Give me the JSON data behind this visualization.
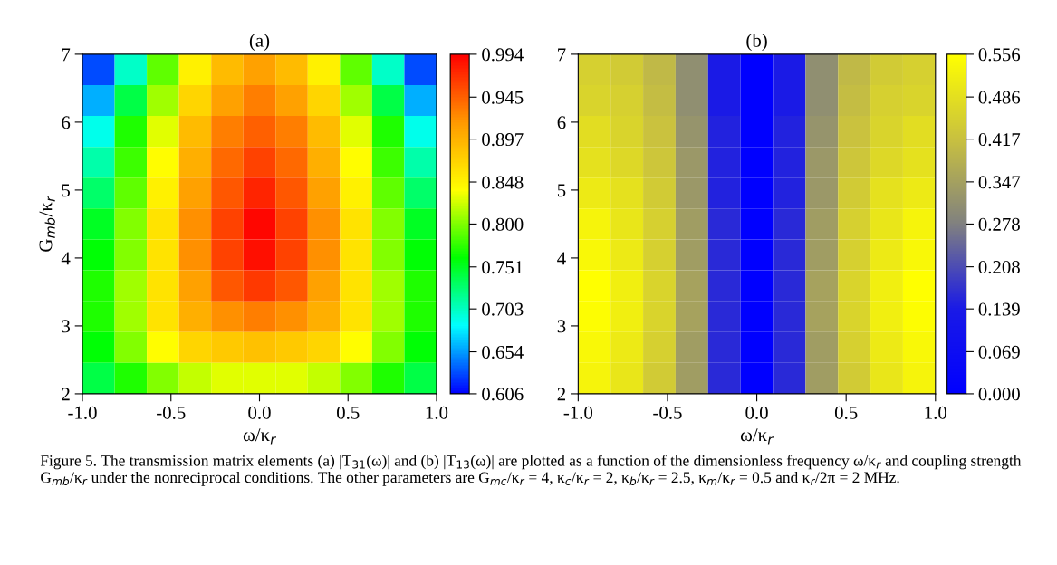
{
  "chart_data": [
    {
      "type": "heatmap",
      "title": "(a)",
      "xlabel": "ω/κ$_{r}$",
      "ylabel": "G$_{mb}$/κ$_{r}$",
      "xlim": [
        -1.0,
        1.0
      ],
      "xticks": [
        {
          "value": -1.0,
          "label": "-1.0"
        },
        {
          "value": -0.5,
          "label": "-0.5"
        },
        {
          "value": 0.0,
          "label": "0.0"
        },
        {
          "value": 0.5,
          "label": "0.5"
        },
        {
          "value": 1.0,
          "label": "1.0"
        }
      ],
      "ylim": [
        2,
        7
      ],
      "yticks": [
        2,
        3,
        4,
        5,
        6,
        7
      ],
      "colors": [
        "#0000ff",
        "#00ffff",
        "#00ff00",
        "#ffff00",
        "#ff9900",
        "#ff0000"
      ],
      "clim": [
        0.606,
        0.994
      ],
      "cticks": [
        {
          "value": 0.606,
          "label": "0.606"
        },
        {
          "value": 0.654,
          "label": "0.654"
        },
        {
          "value": 0.703,
          "label": "0.703"
        },
        {
          "value": 0.751,
          "label": "0.751"
        },
        {
          "value": 0.8,
          "label": "0.800"
        },
        {
          "value": 0.848,
          "label": "0.848"
        },
        {
          "value": 0.897,
          "label": "0.897"
        },
        {
          "value": 0.945,
          "label": "0.945"
        },
        {
          "value": 0.994,
          "label": "0.994"
        }
      ],
      "cells": [
        [
          0.63,
          0.7,
          0.79,
          0.85,
          0.89,
          0.91,
          0.89,
          0.85,
          0.79,
          0.7,
          0.63
        ],
        [
          0.66,
          0.74,
          0.81,
          0.87,
          0.91,
          0.93,
          0.91,
          0.87,
          0.81,
          0.74,
          0.66
        ],
        [
          0.69,
          0.77,
          0.83,
          0.89,
          0.93,
          0.945,
          0.93,
          0.89,
          0.83,
          0.77,
          0.69
        ],
        [
          0.71,
          0.78,
          0.84,
          0.9,
          0.94,
          0.96,
          0.94,
          0.9,
          0.84,
          0.78,
          0.71
        ],
        [
          0.73,
          0.79,
          0.85,
          0.91,
          0.95,
          0.975,
          0.95,
          0.91,
          0.85,
          0.79,
          0.73
        ],
        [
          0.75,
          0.8,
          0.86,
          0.92,
          0.96,
          0.99,
          0.96,
          0.92,
          0.86,
          0.8,
          0.75
        ],
        [
          0.76,
          0.8,
          0.86,
          0.92,
          0.96,
          0.985,
          0.96,
          0.92,
          0.86,
          0.8,
          0.76
        ],
        [
          0.77,
          0.81,
          0.86,
          0.91,
          0.95,
          0.965,
          0.95,
          0.91,
          0.86,
          0.81,
          0.77
        ],
        [
          0.77,
          0.81,
          0.86,
          0.9,
          0.92,
          0.93,
          0.92,
          0.9,
          0.86,
          0.81,
          0.77
        ],
        [
          0.76,
          0.8,
          0.84,
          0.87,
          0.88,
          0.885,
          0.88,
          0.87,
          0.84,
          0.8,
          0.76
        ],
        [
          0.74,
          0.77,
          0.8,
          0.82,
          0.83,
          0.83,
          0.83,
          0.82,
          0.8,
          0.77,
          0.74
        ]
      ],
      "annotations": [
        "Figure 5. The transmission matrix elements (a) |T$_{31}$(ω)| and (b) |T$_{13}$(ω)| are plotted as a function of the dimensionless frequency ω/κ$_{r}$ and coupling strength G$_{mb}$/κ$_{r}$ under the nonreciprocal conditions. The other parameters are G$_{mc}$/κ$_{r}$ = 4, κ$_{c}$/κ$_{r}$ = 2, κ$_{b}$/κ$_{r}$ = 2.5, κ$_{m}$/κ$_{r}$ = 0.5 and κ$_{r}$/2π = 2 MHz."
      ]
    },
    {
      "type": "heatmap",
      "title": "(b)",
      "xlabel": "ω/κ$_{r}$",
      "xlim": [
        -1.0,
        1.0
      ],
      "xticks": [
        {
          "value": -1.0,
          "label": "-1.0"
        },
        {
          "value": -0.5,
          "label": "-0.5"
        },
        {
          "value": 0.0,
          "label": "0.0"
        },
        {
          "value": 0.5,
          "label": "0.5"
        },
        {
          "value": 1.0,
          "label": "1.0"
        }
      ],
      "ylim": [
        2,
        7
      ],
      "yticks": [
        2,
        3,
        4,
        5,
        6,
        7
      ],
      "colors": [
        "#0000ff",
        "#1a1ae6",
        "#808080",
        "#c8c040",
        "#ffff00"
      ],
      "clim": [
        0.0,
        0.556
      ],
      "cticks": [
        {
          "value": 0.0,
          "label": "0.000"
        },
        {
          "value": 0.069,
          "label": "0.069"
        },
        {
          "value": 0.139,
          "label": "0.139"
        },
        {
          "value": 0.208,
          "label": "0.208"
        },
        {
          "value": 0.278,
          "label": "0.278"
        },
        {
          "value": 0.347,
          "label": "0.347"
        },
        {
          "value": 0.417,
          "label": "0.417"
        },
        {
          "value": 0.486,
          "label": "0.486"
        },
        {
          "value": 0.556,
          "label": "0.556"
        }
      ],
      "cells": [
        [
          0.45,
          0.44,
          0.4,
          0.31,
          0.14,
          0.0,
          0.14,
          0.31,
          0.4,
          0.44,
          0.45
        ],
        [
          0.46,
          0.45,
          0.41,
          0.31,
          0.14,
          0.0,
          0.14,
          0.31,
          0.41,
          0.45,
          0.46
        ],
        [
          0.48,
          0.46,
          0.42,
          0.32,
          0.15,
          0.0,
          0.15,
          0.32,
          0.42,
          0.46,
          0.48
        ],
        [
          0.49,
          0.47,
          0.43,
          0.33,
          0.15,
          0.0,
          0.15,
          0.33,
          0.43,
          0.47,
          0.49
        ],
        [
          0.51,
          0.49,
          0.44,
          0.33,
          0.15,
          0.0,
          0.15,
          0.33,
          0.44,
          0.49,
          0.51
        ],
        [
          0.53,
          0.5,
          0.45,
          0.34,
          0.16,
          0.0,
          0.16,
          0.34,
          0.45,
          0.5,
          0.53
        ],
        [
          0.54,
          0.51,
          0.45,
          0.34,
          0.16,
          0.0,
          0.16,
          0.34,
          0.45,
          0.51,
          0.54
        ],
        [
          0.555,
          0.52,
          0.46,
          0.35,
          0.16,
          0.0,
          0.16,
          0.35,
          0.46,
          0.52,
          0.555
        ],
        [
          0.55,
          0.52,
          0.46,
          0.35,
          0.16,
          0.0,
          0.16,
          0.35,
          0.46,
          0.52,
          0.55
        ],
        [
          0.54,
          0.51,
          0.45,
          0.34,
          0.16,
          0.0,
          0.16,
          0.34,
          0.45,
          0.51,
          0.54
        ],
        [
          0.53,
          0.5,
          0.44,
          0.34,
          0.16,
          0.0,
          0.16,
          0.34,
          0.44,
          0.5,
          0.53
        ]
      ]
    }
  ]
}
